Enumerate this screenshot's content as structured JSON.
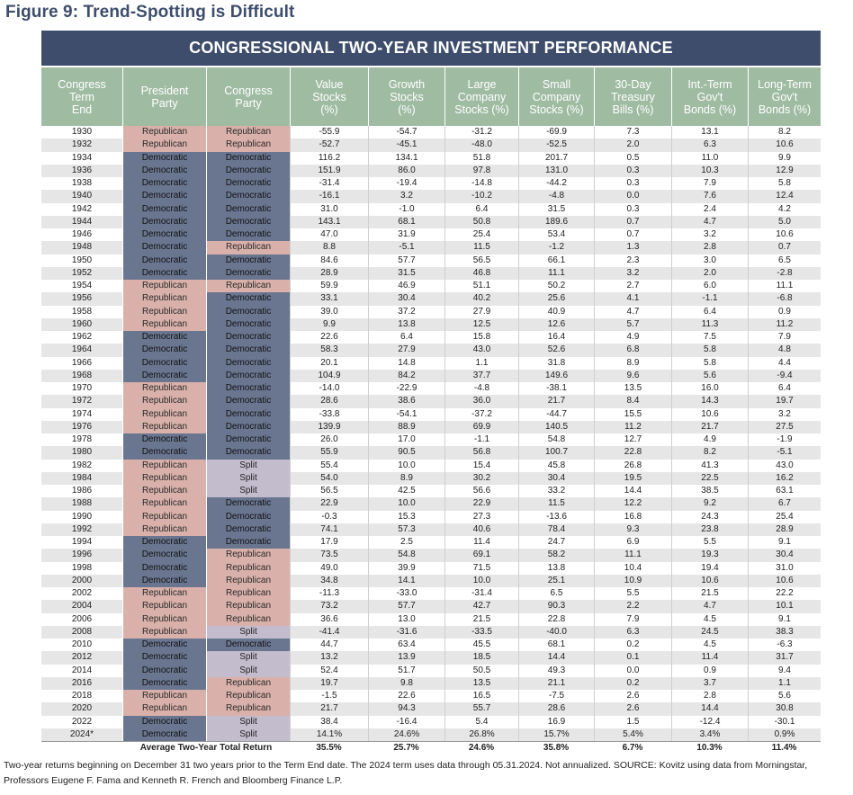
{
  "figure_title": "Figure 9: Trend-Spotting is Difficult",
  "table_title": "CONGRESSIONAL TWO-YEAR INVESTMENT PERFORMANCE",
  "columns": [
    "Congress\nTerm\nEnd",
    "President\nParty",
    "Congress\nParty",
    "Value\nStocks\n(%)",
    "Growth\nStocks\n(%)",
    "Large\nCompany\nStocks (%)",
    "Small\nCompany\nStocks (%)",
    "30-Day\nTreasury\nBills (%)",
    "Int.-Term\nGov't\nBonds (%)",
    "Long-Term\nGov't\nBonds (%)"
  ],
  "rows": [
    [
      "1930",
      "Republican",
      "Republican",
      "-55.9",
      "-54.7",
      "-31.2",
      "-69.9",
      "7.3",
      "13.1",
      "8.2"
    ],
    [
      "1932",
      "Republican",
      "Republican",
      "-52.7",
      "-45.1",
      "-48.0",
      "-52.5",
      "2.0",
      "6.3",
      "10.6"
    ],
    [
      "1934",
      "Democratic",
      "Democratic",
      "116.2",
      "134.1",
      "51.8",
      "201.7",
      "0.5",
      "11.0",
      "9.9"
    ],
    [
      "1936",
      "Democratic",
      "Democratic",
      "151.9",
      "86.0",
      "97.8",
      "131.0",
      "0.3",
      "10.3",
      "12.9"
    ],
    [
      "1938",
      "Democratic",
      "Democratic",
      "-31.4",
      "-19.4",
      "-14.8",
      "-44.2",
      "0.3",
      "7.9",
      "5.8"
    ],
    [
      "1940",
      "Democratic",
      "Democratic",
      "-16.1",
      "3.2",
      "-10.2",
      "-4.8",
      "0.0",
      "7.6",
      "12.4"
    ],
    [
      "1942",
      "Democratic",
      "Democratic",
      "31.0",
      "-1.0",
      "6.4",
      "31.5",
      "0.3",
      "2.4",
      "4.2"
    ],
    [
      "1944",
      "Democratic",
      "Democratic",
      "143.1",
      "68.1",
      "50.8",
      "189.6",
      "0.7",
      "4.7",
      "5.0"
    ],
    [
      "1946",
      "Democratic",
      "Democratic",
      "47.0",
      "31.9",
      "25.4",
      "53.4",
      "0.7",
      "3.2",
      "10.6"
    ],
    [
      "1948",
      "Democratic",
      "Republican",
      "8.8",
      "-5.1",
      "11.5",
      "-1.2",
      "1.3",
      "2.8",
      "0.7"
    ],
    [
      "1950",
      "Democratic",
      "Democratic",
      "84.6",
      "57.7",
      "56.5",
      "66.1",
      "2.3",
      "3.0",
      "6.5"
    ],
    [
      "1952",
      "Democratic",
      "Democratic",
      "28.9",
      "31.5",
      "46.8",
      "11.1",
      "3.2",
      "2.0",
      "-2.8"
    ],
    [
      "1954",
      "Republican",
      "Republican",
      "59.9",
      "46.9",
      "51.1",
      "50.2",
      "2.7",
      "6.0",
      "11.1"
    ],
    [
      "1956",
      "Republican",
      "Democratic",
      "33.1",
      "30.4",
      "40.2",
      "25.6",
      "4.1",
      "-1.1",
      "-6.8"
    ],
    [
      "1958",
      "Republican",
      "Democratic",
      "39.0",
      "37.2",
      "27.9",
      "40.9",
      "4.7",
      "6.4",
      "0.9"
    ],
    [
      "1960",
      "Republican",
      "Democratic",
      "9.9",
      "13.8",
      "12.5",
      "12.6",
      "5.7",
      "11.3",
      "11.2"
    ],
    [
      "1962",
      "Democratic",
      "Democratic",
      "22.6",
      "6.4",
      "15.8",
      "16.4",
      "4.9",
      "7.5",
      "7.9"
    ],
    [
      "1964",
      "Democratic",
      "Democratic",
      "58.3",
      "27.9",
      "43.0",
      "52.6",
      "6.8",
      "5.8",
      "4.8"
    ],
    [
      "1966",
      "Democratic",
      "Democratic",
      "20.1",
      "14.8",
      "1.1",
      "31.8",
      "8.9",
      "5.8",
      "4.4"
    ],
    [
      "1968",
      "Democratic",
      "Democratic",
      "104.9",
      "84.2",
      "37.7",
      "149.6",
      "9.6",
      "5.6",
      "-9.4"
    ],
    [
      "1970",
      "Republican",
      "Democratic",
      "-14.0",
      "-22.9",
      "-4.8",
      "-38.1",
      "13.5",
      "16.0",
      "6.4"
    ],
    [
      "1972",
      "Republican",
      "Democratic",
      "28.6",
      "38.6",
      "36.0",
      "21.7",
      "8.4",
      "14.3",
      "19.7"
    ],
    [
      "1974",
      "Republican",
      "Democratic",
      "-33.8",
      "-54.1",
      "-37.2",
      "-44.7",
      "15.5",
      "10.6",
      "3.2"
    ],
    [
      "1976",
      "Republican",
      "Democratic",
      "139.9",
      "88.9",
      "69.9",
      "140.5",
      "11.2",
      "21.7",
      "27.5"
    ],
    [
      "1978",
      "Democratic",
      "Democratic",
      "26.0",
      "17.0",
      "-1.1",
      "54.8",
      "12.7",
      "4.9",
      "-1.9"
    ],
    [
      "1980",
      "Democratic",
      "Democratic",
      "55.9",
      "90.5",
      "56.8",
      "100.7",
      "22.8",
      "8.2",
      "-5.1"
    ],
    [
      "1982",
      "Republican",
      "Split",
      "55.4",
      "10.0",
      "15.4",
      "45.8",
      "26.8",
      "41.3",
      "43.0"
    ],
    [
      "1984",
      "Republican",
      "Split",
      "54.0",
      "8.9",
      "30.2",
      "30.4",
      "19.5",
      "22.5",
      "16.2"
    ],
    [
      "1986",
      "Republican",
      "Split",
      "56.5",
      "42.5",
      "56.6",
      "33.2",
      "14.4",
      "38.5",
      "63.1"
    ],
    [
      "1988",
      "Republican",
      "Democratic",
      "22.9",
      "10.0",
      "22.9",
      "11.5",
      "12.2",
      "9.2",
      "6.7"
    ],
    [
      "1990",
      "Republican",
      "Democratic",
      "-0.3",
      "15.3",
      "27.3",
      "-13.6",
      "16.8",
      "24.3",
      "25.4"
    ],
    [
      "1992",
      "Republican",
      "Democratic",
      "74.1",
      "57.3",
      "40.6",
      "78.4",
      "9.3",
      "23.8",
      "28.9"
    ],
    [
      "1994",
      "Democratic",
      "Democratic",
      "17.9",
      "2.5",
      "11.4",
      "24.7",
      "6.9",
      "5.5",
      "9.1"
    ],
    [
      "1996",
      "Democratic",
      "Republican",
      "73.5",
      "54.8",
      "69.1",
      "58.2",
      "11.1",
      "19.3",
      "30.4"
    ],
    [
      "1998",
      "Democratic",
      "Republican",
      "49.0",
      "39.9",
      "71.5",
      "13.8",
      "10.4",
      "19.4",
      "31.0"
    ],
    [
      "2000",
      "Democratic",
      "Republican",
      "34.8",
      "14.1",
      "10.0",
      "25.1",
      "10.9",
      "10.6",
      "10.6"
    ],
    [
      "2002",
      "Republican",
      "Republican",
      "-11.3",
      "-33.0",
      "-31.4",
      "6.5",
      "5.5",
      "21.5",
      "22.2"
    ],
    [
      "2004",
      "Republican",
      "Republican",
      "73.2",
      "57.7",
      "42.7",
      "90.3",
      "2.2",
      "4.7",
      "10.1"
    ],
    [
      "2006",
      "Republican",
      "Republican",
      "36.6",
      "13.0",
      "21.5",
      "22.8",
      "7.9",
      "4.5",
      "9.1"
    ],
    [
      "2008",
      "Republican",
      "Split",
      "-41.4",
      "-31.6",
      "-33.5",
      "-40.0",
      "6.3",
      "24.5",
      "38.3"
    ],
    [
      "2010",
      "Democratic",
      "Democratic",
      "44.7",
      "63.4",
      "45.5",
      "68.1",
      "0.2",
      "4.5",
      "-6.3"
    ],
    [
      "2012",
      "Democratic",
      "Split",
      "13.2",
      "13.9",
      "18.5",
      "14.4",
      "0.1",
      "11.4",
      "31.7"
    ],
    [
      "2014",
      "Democratic",
      "Split",
      "52.4",
      "51.7",
      "50.5",
      "49.3",
      "0.0",
      "0.9",
      "9.4"
    ],
    [
      "2016",
      "Democratic",
      "Republican",
      "19.7",
      "9.8",
      "13.5",
      "21.1",
      "0.2",
      "3.7",
      "1.1"
    ],
    [
      "2018",
      "Republican",
      "Republican",
      "-1.5",
      "22.6",
      "16.5",
      "-7.5",
      "2.6",
      "2.8",
      "5.6"
    ],
    [
      "2020",
      "Republican",
      "Republican",
      "21.7",
      "94.3",
      "55.7",
      "28.6",
      "2.6",
      "14.4",
      "30.8"
    ],
    [
      "2022",
      "Democratic",
      "Split",
      "38.4",
      "-16.4",
      "5.4",
      "16.9",
      "1.5",
      "-12.4",
      "-30.1"
    ],
    [
      "2024*",
      "Democratic",
      "Split",
      "14.1%",
      "24.6%",
      "26.8%",
      "15.7%",
      "5.4%",
      "3.4%",
      "0.9%"
    ]
  ],
  "average": {
    "label": "Average Two-Year Total Return",
    "values": [
      "35.5%",
      "25.7%",
      "24.6%",
      "35.8%",
      "6.7%",
      "10.3%",
      "11.4%"
    ]
  },
  "footnote": "Two-year returns beginning on December 31 two years prior to the Term End date. The 2024 term uses data through 05.31.2024. Not annualized. SOURCE: Kovitz using data from Morningstar, Professors Eugene F. Fama and Kenneth R. French and Bloomberg Finance L.P.",
  "colors": {
    "banner": "#3d4d6b",
    "header": "#9fbca3",
    "republican": "#d9b1aa",
    "democratic": "#6a7690",
    "split": "#c3bccd"
  }
}
